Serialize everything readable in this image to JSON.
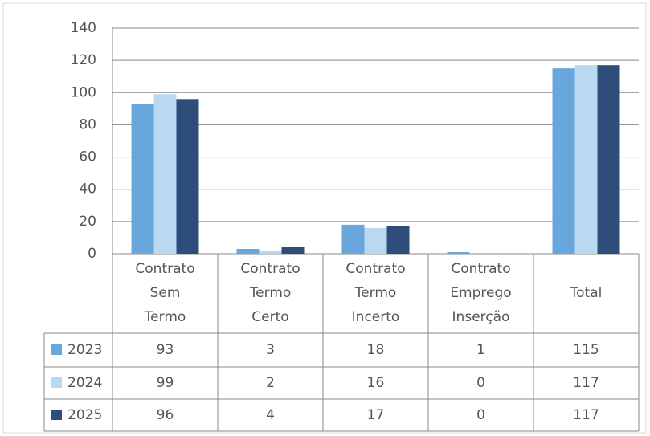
{
  "chart_data": {
    "type": "bar",
    "categories": [
      "Contrato Sem Termo",
      "Contrato Termo Certo",
      "Contrato Termo Incerto",
      "Contrato Emprego Inserção",
      "Total"
    ],
    "series": [
      {
        "name": "2023",
        "color": "#68a7dc",
        "values": [
          93,
          3,
          18,
          1,
          115
        ]
      },
      {
        "name": "2024",
        "color": "#b9d9f1",
        "values": [
          99,
          2,
          16,
          0,
          117
        ]
      },
      {
        "name": "2025",
        "color": "#2e4d7b",
        "values": [
          96,
          4,
          17,
          0,
          117
        ]
      }
    ],
    "ylim": [
      0,
      140
    ],
    "yticks": [
      0,
      20,
      40,
      60,
      80,
      100,
      120,
      140
    ],
    "grid": true,
    "data_table": true
  }
}
